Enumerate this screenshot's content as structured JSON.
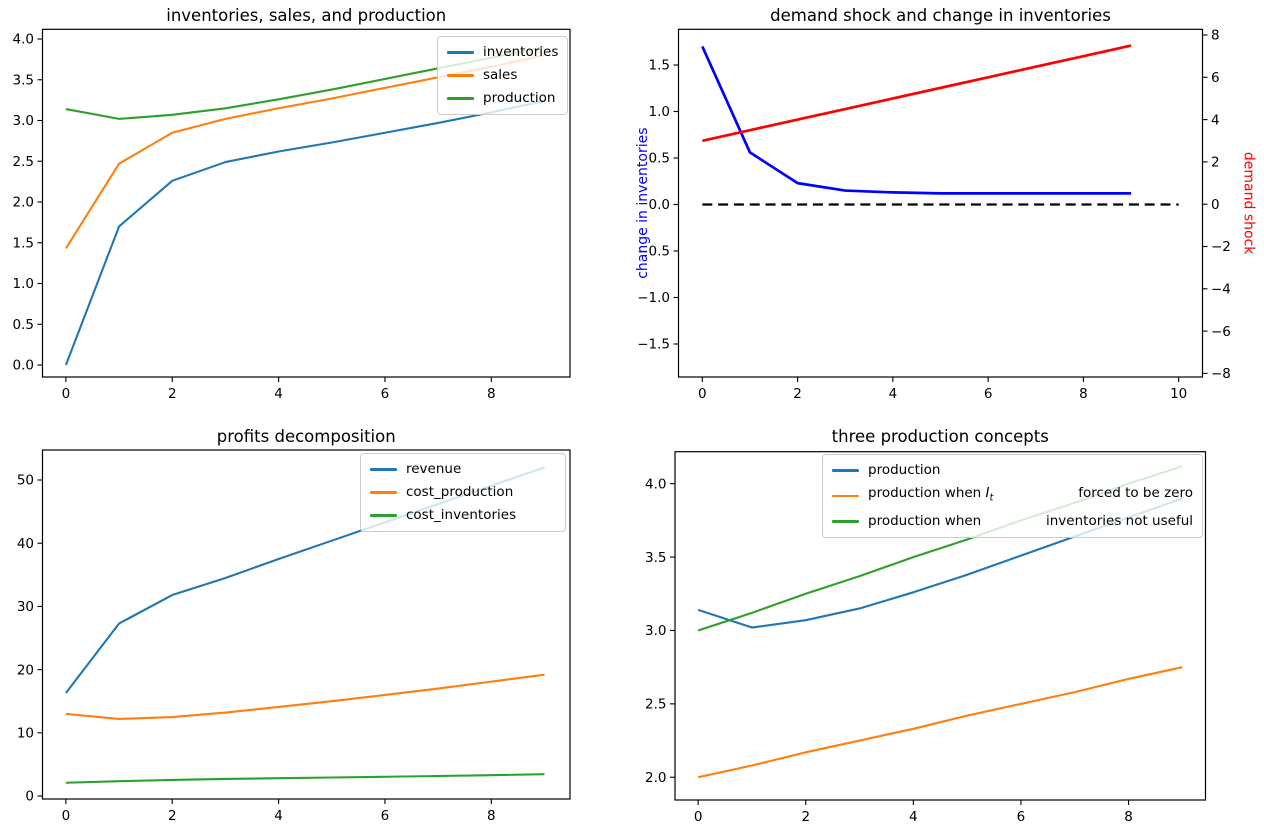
{
  "chart_data": [
    {
      "type": "line",
      "title": "inventories, sales, and production",
      "x": [
        0,
        1,
        2,
        3,
        4,
        5,
        6,
        7,
        8,
        9
      ],
      "xlim": [
        -0.44,
        9.48
      ],
      "ylim": [
        -0.147,
        4.119
      ],
      "xticks": [
        {
          "v": 0,
          "label": "0"
        },
        {
          "v": 2,
          "label": "2"
        },
        {
          "v": 4,
          "label": "4"
        },
        {
          "v": 6,
          "label": "6"
        },
        {
          "v": 8,
          "label": "8"
        }
      ],
      "yticks": [
        {
          "v": 0.0,
          "label": "0.0"
        },
        {
          "v": 0.5,
          "label": "0.5"
        },
        {
          "v": 1.0,
          "label": "1.0"
        },
        {
          "v": 1.5,
          "label": "1.5"
        },
        {
          "v": 2.0,
          "label": "2.0"
        },
        {
          "v": 2.5,
          "label": "2.5"
        },
        {
          "v": 3.0,
          "label": "3.0"
        },
        {
          "v": 3.5,
          "label": "3.5"
        },
        {
          "v": 4.0,
          "label": "4.0"
        }
      ],
      "series": [
        {
          "name": "inventories",
          "color": "#1f77b4",
          "values": [
            0.0,
            1.7,
            2.26,
            2.49,
            2.62,
            2.73,
            2.85,
            2.97,
            3.1,
            3.24
          ]
        },
        {
          "name": "sales",
          "color": "#ff7f0e",
          "values": [
            1.43,
            2.47,
            2.85,
            3.02,
            3.15,
            3.27,
            3.4,
            3.53,
            3.66,
            3.8
          ]
        },
        {
          "name": "production",
          "color": "#2ca02c",
          "values": [
            3.14,
            3.02,
            3.07,
            3.15,
            3.26,
            3.38,
            3.51,
            3.64,
            3.77,
            3.9
          ]
        }
      ],
      "legend": [
        {
          "label": "inventories",
          "color": "#1f77b4"
        },
        {
          "label": "sales",
          "color": "#ff7f0e"
        },
        {
          "label": "production",
          "color": "#2ca02c"
        }
      ],
      "legend_position": "upper right"
    },
    {
      "type": "line",
      "title": "demand shock and change in inventories",
      "x": [
        0,
        1,
        2,
        3,
        4,
        5,
        6,
        7,
        8,
        9
      ],
      "xlim": [
        -0.5,
        10.5
      ],
      "ylim": [
        -1.855,
        1.884
      ],
      "ylim_right": [
        -8.17,
        8.27
      ],
      "ylabel_left": {
        "text": "change in inventories",
        "color": "#0000ff"
      },
      "ylabel_right": {
        "text": "demand shock",
        "color": "#ff0000"
      },
      "xticks": [
        {
          "v": 0,
          "label": "0"
        },
        {
          "v": 2,
          "label": "2"
        },
        {
          "v": 4,
          "label": "4"
        },
        {
          "v": 6,
          "label": "6"
        },
        {
          "v": 8,
          "label": "8"
        },
        {
          "v": 10,
          "label": "10"
        }
      ],
      "yticks": [
        {
          "v": 1.5,
          "label": "1.5"
        },
        {
          "v": 1.0,
          "label": "1.0"
        },
        {
          "v": 0.5,
          "label": "0.5"
        },
        {
          "v": 0.0,
          "label": "0.0"
        },
        {
          "v": -0.5,
          "label": "−0.5"
        },
        {
          "v": -1.0,
          "label": "−1.0"
        },
        {
          "v": -1.5,
          "label": "−1.5"
        }
      ],
      "yticks_right": [
        {
          "v": 8,
          "label": "8"
        },
        {
          "v": 6,
          "label": "6"
        },
        {
          "v": 4,
          "label": "4"
        },
        {
          "v": 2,
          "label": "2"
        },
        {
          "v": 0,
          "label": "0"
        },
        {
          "v": -2,
          "label": "−2"
        },
        {
          "v": -4,
          "label": "−4"
        },
        {
          "v": -6,
          "label": "−6"
        },
        {
          "v": -8,
          "label": "−8"
        }
      ],
      "series": [
        {
          "name": "zero line",
          "color": "#000000",
          "dash": true,
          "lw": 2.2,
          "x": [
            0,
            10
          ],
          "values": [
            0,
            0
          ]
        },
        {
          "name": "change in inventories",
          "color": "#0000ff",
          "lw": 2.7,
          "values": [
            1.7,
            0.56,
            0.23,
            0.15,
            0.13,
            0.12,
            0.12,
            0.12,
            0.12,
            0.12
          ]
        },
        {
          "name": "demand shock",
          "color": "#ff0000",
          "lw": 2.7,
          "axis": "right",
          "values": [
            3.0,
            3.5,
            4.0,
            4.5,
            5.0,
            5.5,
            6.0,
            6.5,
            7.0,
            7.5
          ]
        }
      ]
    },
    {
      "type": "line",
      "title": "profits decomposition",
      "x": [
        0,
        1,
        2,
        3,
        4,
        5,
        6,
        7,
        8,
        9
      ],
      "xlim": [
        -0.44,
        9.48
      ],
      "ylim": [
        -0.47,
        54.75
      ],
      "xticks": [
        {
          "v": 0,
          "label": "0"
        },
        {
          "v": 2,
          "label": "2"
        },
        {
          "v": 4,
          "label": "4"
        },
        {
          "v": 6,
          "label": "6"
        },
        {
          "v": 8,
          "label": "8"
        }
      ],
      "yticks": [
        {
          "v": 0,
          "label": "0"
        },
        {
          "v": 10,
          "label": "10"
        },
        {
          "v": 20,
          "label": "20"
        },
        {
          "v": 30,
          "label": "30"
        },
        {
          "v": 40,
          "label": "40"
        },
        {
          "v": 50,
          "label": "50"
        }
      ],
      "series": [
        {
          "name": "revenue",
          "color": "#1f77b4",
          "values": [
            16.3,
            27.3,
            31.8,
            34.5,
            37.5,
            40.4,
            43.3,
            46.2,
            49.1,
            52.0
          ]
        },
        {
          "name": "cost_production",
          "color": "#ff7f0e",
          "values": [
            13.0,
            12.2,
            12.5,
            13.2,
            14.1,
            15.0,
            16.0,
            17.0,
            18.1,
            19.2
          ]
        },
        {
          "name": "cost_inventories",
          "color": "#2ca02c",
          "values": [
            2.1,
            2.35,
            2.55,
            2.7,
            2.82,
            2.93,
            3.05,
            3.17,
            3.3,
            3.45
          ]
        }
      ],
      "legend": [
        {
          "label": "revenue",
          "color": "#1f77b4"
        },
        {
          "label": "cost_production",
          "color": "#ff7f0e"
        },
        {
          "label": "cost_inventories",
          "color": "#2ca02c"
        }
      ],
      "legend_position": "upper right"
    },
    {
      "type": "line",
      "title": "three production concepts",
      "x": [
        0,
        1,
        2,
        3,
        4,
        5,
        6,
        7,
        8,
        9
      ],
      "xlim": [
        -0.43,
        9.43
      ],
      "ylim": [
        1.845,
        4.218
      ],
      "xticks": [
        {
          "v": 0,
          "label": "0"
        },
        {
          "v": 2,
          "label": "2"
        },
        {
          "v": 4,
          "label": "4"
        },
        {
          "v": 6,
          "label": "6"
        },
        {
          "v": 8,
          "label": "8"
        }
      ],
      "yticks": [
        {
          "v": 2.0,
          "label": "2.0"
        },
        {
          "v": 2.5,
          "label": "2.5"
        },
        {
          "v": 3.0,
          "label": "3.0"
        },
        {
          "v": 3.5,
          "label": "3.5"
        },
        {
          "v": 4.0,
          "label": "4.0"
        }
      ],
      "series": [
        {
          "name": "production",
          "color": "#1f77b4",
          "values": [
            3.14,
            3.02,
            3.07,
            3.15,
            3.26,
            3.38,
            3.51,
            3.64,
            3.77,
            3.9
          ]
        },
        {
          "name": "production when I_t forced to be zero",
          "color": "#ff7f0e",
          "values": [
            2.0,
            2.08,
            2.17,
            2.25,
            2.33,
            2.42,
            2.5,
            2.58,
            2.67,
            2.75
          ]
        },
        {
          "name": "production when inventories not useful",
          "color": "#2ca02c",
          "values": [
            3.0,
            3.12,
            3.25,
            3.37,
            3.5,
            3.62,
            3.75,
            3.87,
            4.0,
            4.12
          ]
        }
      ],
      "legend": [
        {
          "label": "production",
          "color": "#1f77b4"
        },
        {
          "label_left": "production when ",
          "math": "I",
          "math_sub": "t",
          "label_right": "forced to be zero",
          "color": "#ff7f0e"
        },
        {
          "label_left": "production when",
          "label_right": "inventories not useful",
          "color": "#2ca02c"
        }
      ],
      "legend_position": "upper right wide"
    }
  ]
}
